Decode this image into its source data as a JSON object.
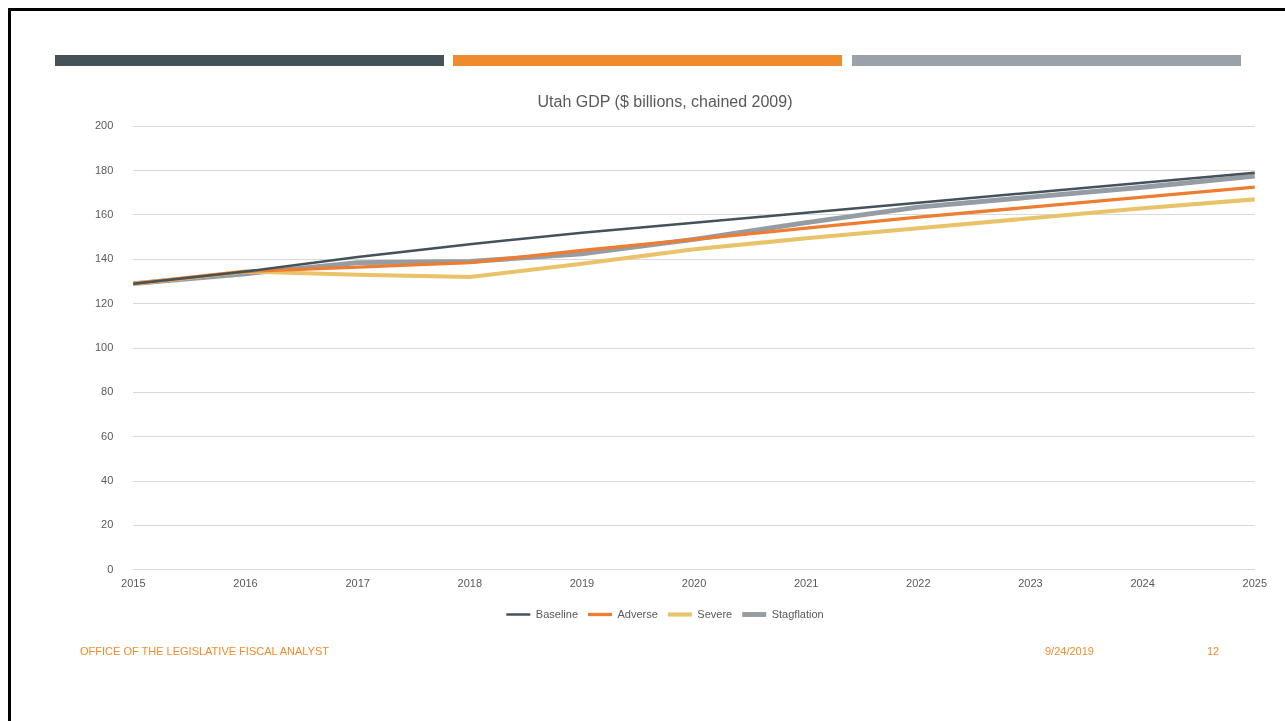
{
  "chart_data": {
    "type": "line",
    "title": "Utah GDP ($ billions, chained 2009)",
    "categories": [
      "2015",
      "2016",
      "2017",
      "2018",
      "2019",
      "2020",
      "2021",
      "2022",
      "2023",
      "2024",
      "2025"
    ],
    "series": [
      {
        "name": "Baseline",
        "color": "#44525a",
        "values": [
          129,
          134.5,
          141,
          146.8,
          152,
          156.5,
          161,
          165.5,
          170,
          174.5,
          179
        ]
      },
      {
        "name": "Adverse",
        "color": "#ed7d31",
        "values": [
          129,
          134.5,
          136.5,
          138.5,
          144,
          149,
          154,
          159,
          163.5,
          168,
          172.5
        ]
      },
      {
        "name": "Severe",
        "color": "#e8c36a",
        "values": [
          129,
          134.5,
          133,
          132,
          138,
          144.5,
          149.5,
          154,
          158.5,
          163,
          167
        ]
      },
      {
        "name": "Stagflation",
        "color": "#959ca3",
        "values": [
          129,
          133.5,
          138.5,
          139,
          142.5,
          149,
          156.5,
          163.5,
          168,
          172.5,
          177.5
        ]
      }
    ],
    "ylim": [
      0,
      200
    ],
    "yticks": [
      0,
      20,
      40,
      60,
      80,
      100,
      120,
      140,
      160,
      180,
      200
    ],
    "grid": "y",
    "legend": "bottom",
    "marker": "none",
    "line_style": "solid",
    "annotations": [
      "OFFICE OF THE LEGISLATIVE FISCAL ANALYST",
      "9/24/2019",
      "12"
    ]
  }
}
